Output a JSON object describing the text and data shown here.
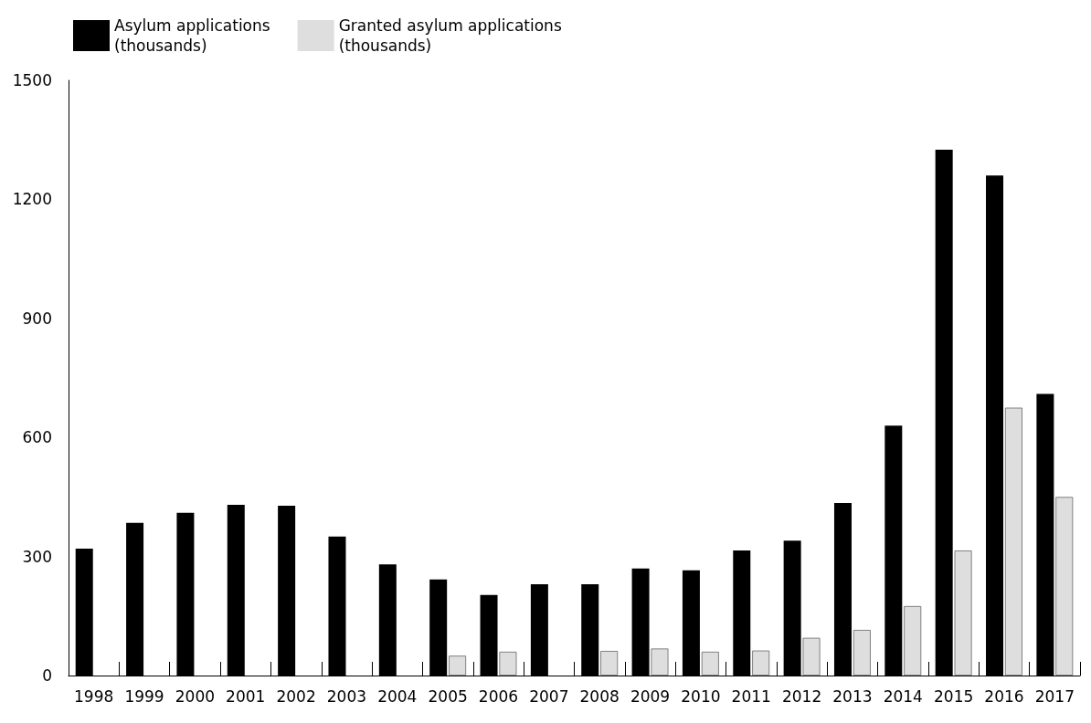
{
  "chart_data": {
    "type": "bar",
    "categories": [
      "1998",
      "1999",
      "2000",
      "2001",
      "2002",
      "2003",
      "2004",
      "2005",
      "2006",
      "2007",
      "2008",
      "2009",
      "2010",
      "2011",
      "2012",
      "2013",
      "2014",
      "2015",
      "2016",
      "2017"
    ],
    "series": [
      {
        "name": "Asylum applications\n(thousands)",
        "color": "#000000",
        "values": [
          320,
          385,
          410,
          430,
          428,
          350,
          280,
          242,
          203,
          230,
          230,
          270,
          265,
          315,
          340,
          435,
          630,
          1325,
          1260,
          710
        ]
      },
      {
        "name": "Granted asylum applications\n(thousands)",
        "color": "#dedede",
        "values": [
          null,
          null,
          null,
          null,
          null,
          null,
          null,
          50,
          60,
          null,
          62,
          68,
          60,
          63,
          95,
          115,
          175,
          315,
          675,
          450
        ]
      }
    ],
    "ylim": [
      0,
      1500
    ],
    "yticks": [
      0,
      300,
      600,
      900,
      1200,
      1500
    ],
    "grid": false,
    "legend": "top left"
  }
}
